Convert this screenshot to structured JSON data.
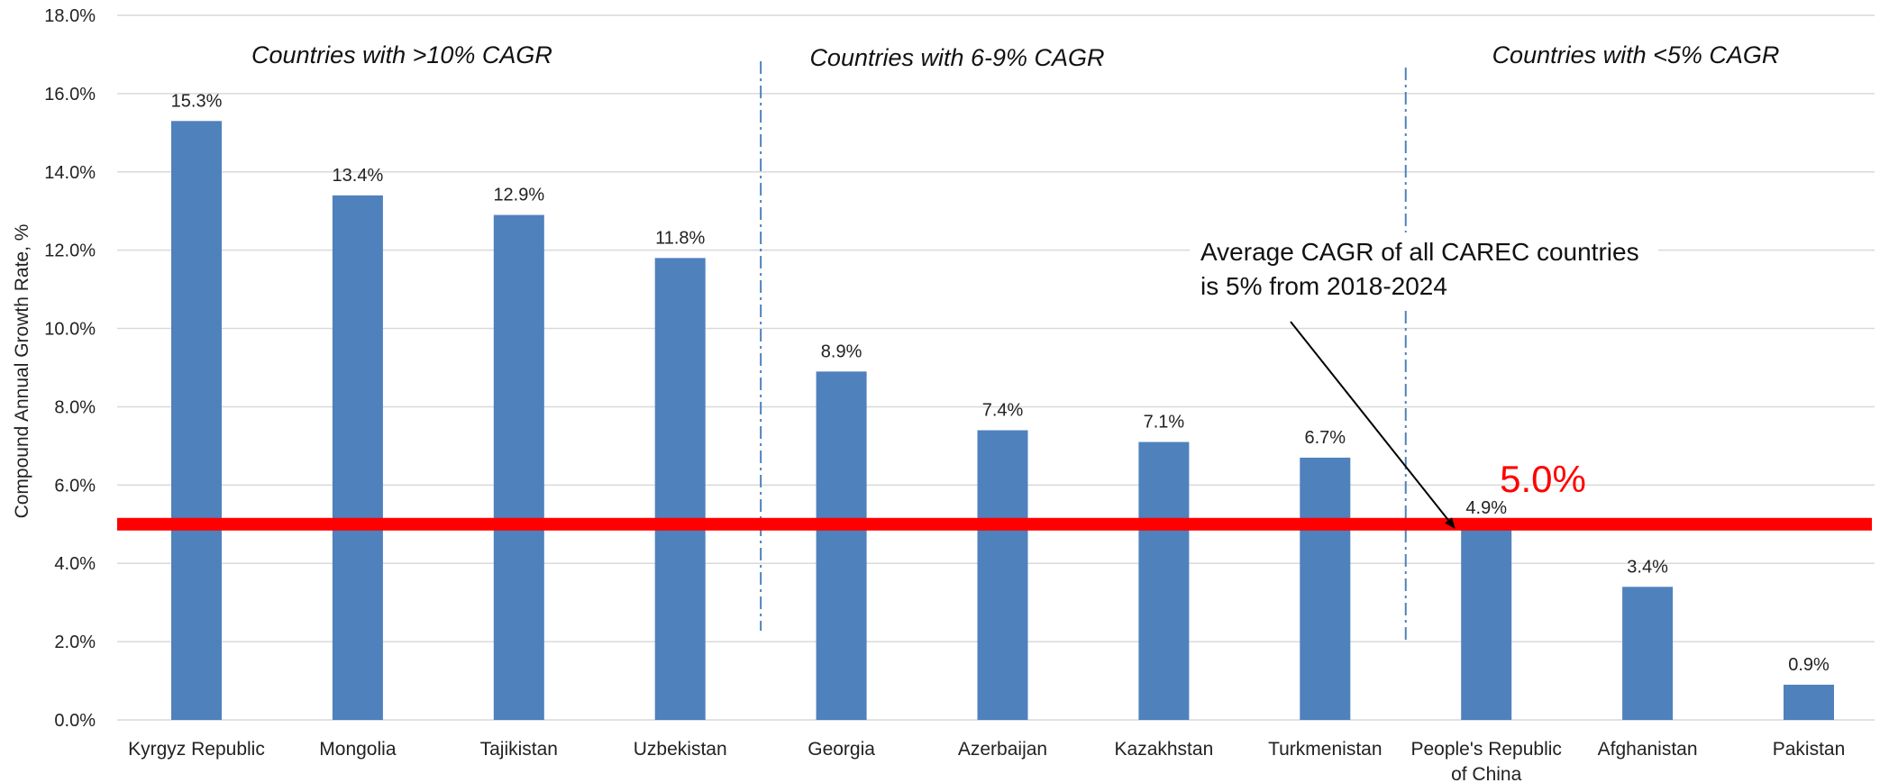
{
  "chart_data": {
    "type": "bar",
    "ylabel": "Compound Annual Growth Rate, %",
    "ylim": [
      0,
      18
    ],
    "yticks": [
      "0.0%",
      "2.0%",
      "4.0%",
      "6.0%",
      "8.0%",
      "10.0%",
      "12.0%",
      "14.0%",
      "16.0%",
      "18.0%"
    ],
    "categories": [
      "Kyrgyz Republic",
      "Mongolia",
      "Tajikistan",
      "Uzbekistan",
      "Georgia",
      "Azerbaijan",
      "Kazakhstan",
      "Turkmenistan",
      "People's Republic of China",
      "Afghanistan",
      "Pakistan"
    ],
    "values": [
      15.3,
      13.4,
      12.9,
      11.8,
      8.9,
      7.4,
      7.1,
      6.7,
      4.9,
      3.4,
      0.9
    ],
    "data_labels": [
      "15.3%",
      "13.4%",
      "12.9%",
      "11.8%",
      "8.9%",
      "7.4%",
      "7.1%",
      "6.7%",
      "4.9%",
      "3.4%",
      "0.9%"
    ],
    "grid": true,
    "average_line": {
      "value": 5.0,
      "label": "5.0%",
      "color": "#ff0000"
    },
    "groups": [
      {
        "label": "Countries with >10% CAGR"
      },
      {
        "label": "Countries with 6-9% CAGR"
      },
      {
        "label": "Countries with <5% CAGR"
      }
    ],
    "annotation": {
      "line1": "Average CAGR of all CAREC countries",
      "line2": "is 5% from 2018-2024"
    },
    "colors": {
      "bar": "#4f81bd",
      "grid": "#d9d9d9",
      "divider": "#4f81bd",
      "average": "#ff0000"
    }
  }
}
